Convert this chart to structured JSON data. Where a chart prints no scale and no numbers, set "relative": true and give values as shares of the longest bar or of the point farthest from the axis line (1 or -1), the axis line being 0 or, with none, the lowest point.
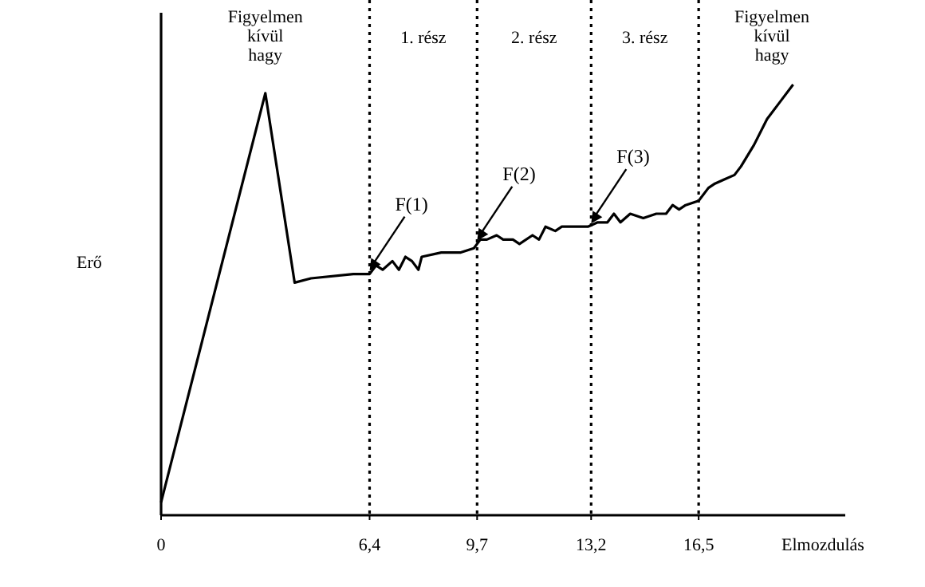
{
  "chart_data": {
    "type": "line",
    "relative": true,
    "xlabel": "Elmozdulás",
    "ylabel": "Erő",
    "xlim": [
      0,
      21
    ],
    "xticks": [
      0,
      {
        "value": 6.4,
        "label": "6,4"
      },
      {
        "value": 9.7,
        "label": "9,7"
      },
      {
        "value": 13.2,
        "label": "13,2"
      },
      {
        "value": 16.5,
        "label": "16,5"
      }
    ],
    "x": [
      0,
      3.2,
      4.1,
      4.6,
      5.9,
      6.4,
      6.6,
      6.8,
      7.1,
      7.3,
      7.5,
      7.7,
      7.9,
      8.0,
      8.6,
      8.8,
      9.2,
      9.6,
      9.8,
      10.0,
      10.3,
      10.5,
      10.8,
      11.0,
      11.4,
      11.6,
      11.8,
      12.1,
      12.3,
      12.5,
      12.8,
      13.1,
      13.4,
      13.7,
      13.9,
      14.1,
      14.4,
      14.8,
      15.2,
      15.5,
      15.7,
      15.9,
      16.1,
      16.5,
      16.8,
      17.0,
      17.3,
      17.6,
      17.8,
      18.2,
      18.6,
      19.0,
      19.4
    ],
    "series": [
      {
        "color": "#000000",
        "values": [
          0.03,
          0.98,
          0.54,
          0.55,
          0.56,
          0.56,
          0.58,
          0.57,
          0.59,
          0.57,
          0.6,
          0.59,
          0.57,
          0.6,
          0.61,
          0.61,
          0.61,
          0.62,
          0.64,
          0.64,
          0.65,
          0.64,
          0.64,
          0.63,
          0.65,
          0.64,
          0.67,
          0.66,
          0.67,
          0.67,
          0.67,
          0.67,
          0.68,
          0.68,
          0.7,
          0.68,
          0.7,
          0.69,
          0.7,
          0.7,
          0.72,
          0.71,
          0.72,
          0.73,
          0.76,
          0.77,
          0.78,
          0.79,
          0.81,
          0.86,
          0.92,
          0.96,
          1.0
        ]
      }
    ],
    "marker": "none",
    "line_style": "solid",
    "grid": false,
    "ref_lines": [
      {
        "axis": "x",
        "value": 6.4,
        "color": "#000000",
        "line_style": "dotted"
      },
      {
        "axis": "x",
        "value": 9.7,
        "color": "#000000",
        "line_style": "dotted"
      },
      {
        "axis": "x",
        "value": 13.2,
        "color": "#000000",
        "line_style": "dotted"
      },
      {
        "axis": "x",
        "value": 16.5,
        "color": "#000000",
        "line_style": "dotted"
      }
    ],
    "annotations": [
      "Figyelmen kívül hagy",
      "1. rész",
      "2. rész",
      "3. rész",
      "Figyelmen kívül hagy",
      {
        "text": "F(1)",
        "x": 6.4,
        "y": 0.56
      },
      {
        "text": "F(2)",
        "x": 9.7,
        "y": 0.63
      },
      {
        "text": "F(3)",
        "x": 13.2,
        "y": 0.67
      }
    ]
  }
}
